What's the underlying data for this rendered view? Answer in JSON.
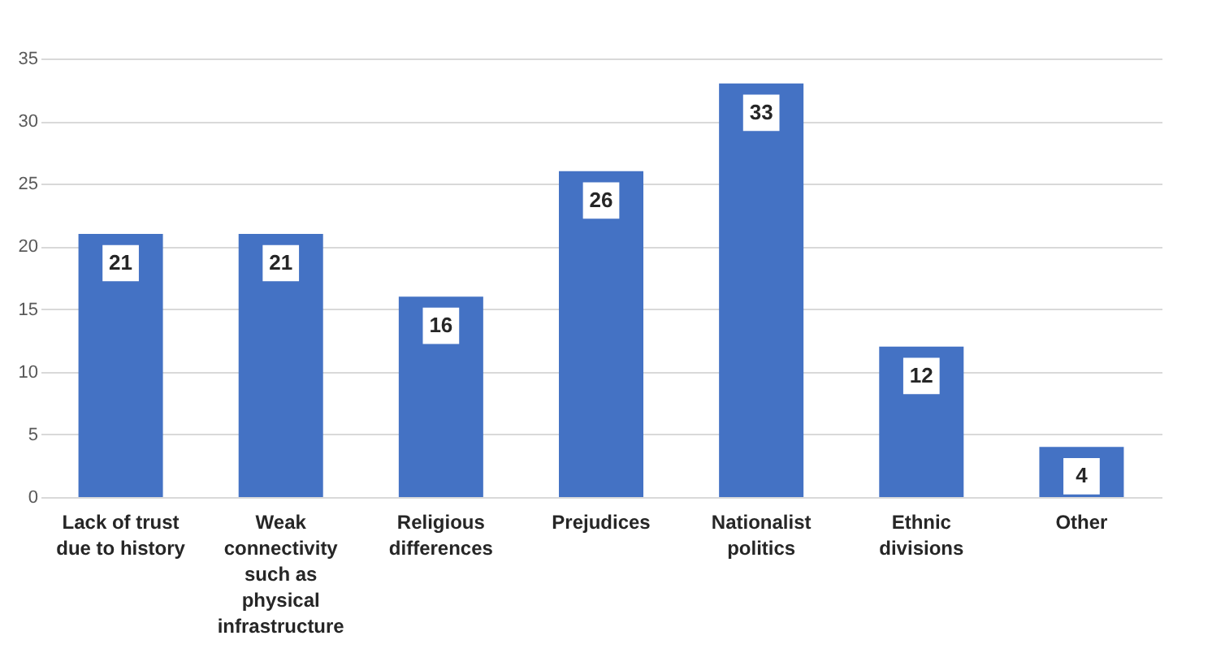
{
  "chart_data": {
    "type": "bar",
    "categories": [
      "Lack of trust due to history",
      "Weak connectivity such as physical infrastructure",
      "Religious differences",
      "Prejudices",
      "Nationalist politics",
      "Ethnic divisions",
      "Other"
    ],
    "values": [
      21,
      21,
      16,
      26,
      33,
      12,
      4
    ],
    "color": "#4472c4",
    "ylim": [
      0,
      35
    ],
    "yticks": [
      0,
      5,
      10,
      15,
      20,
      25,
      30,
      35
    ],
    "grid": "y",
    "data_labels": true
  }
}
